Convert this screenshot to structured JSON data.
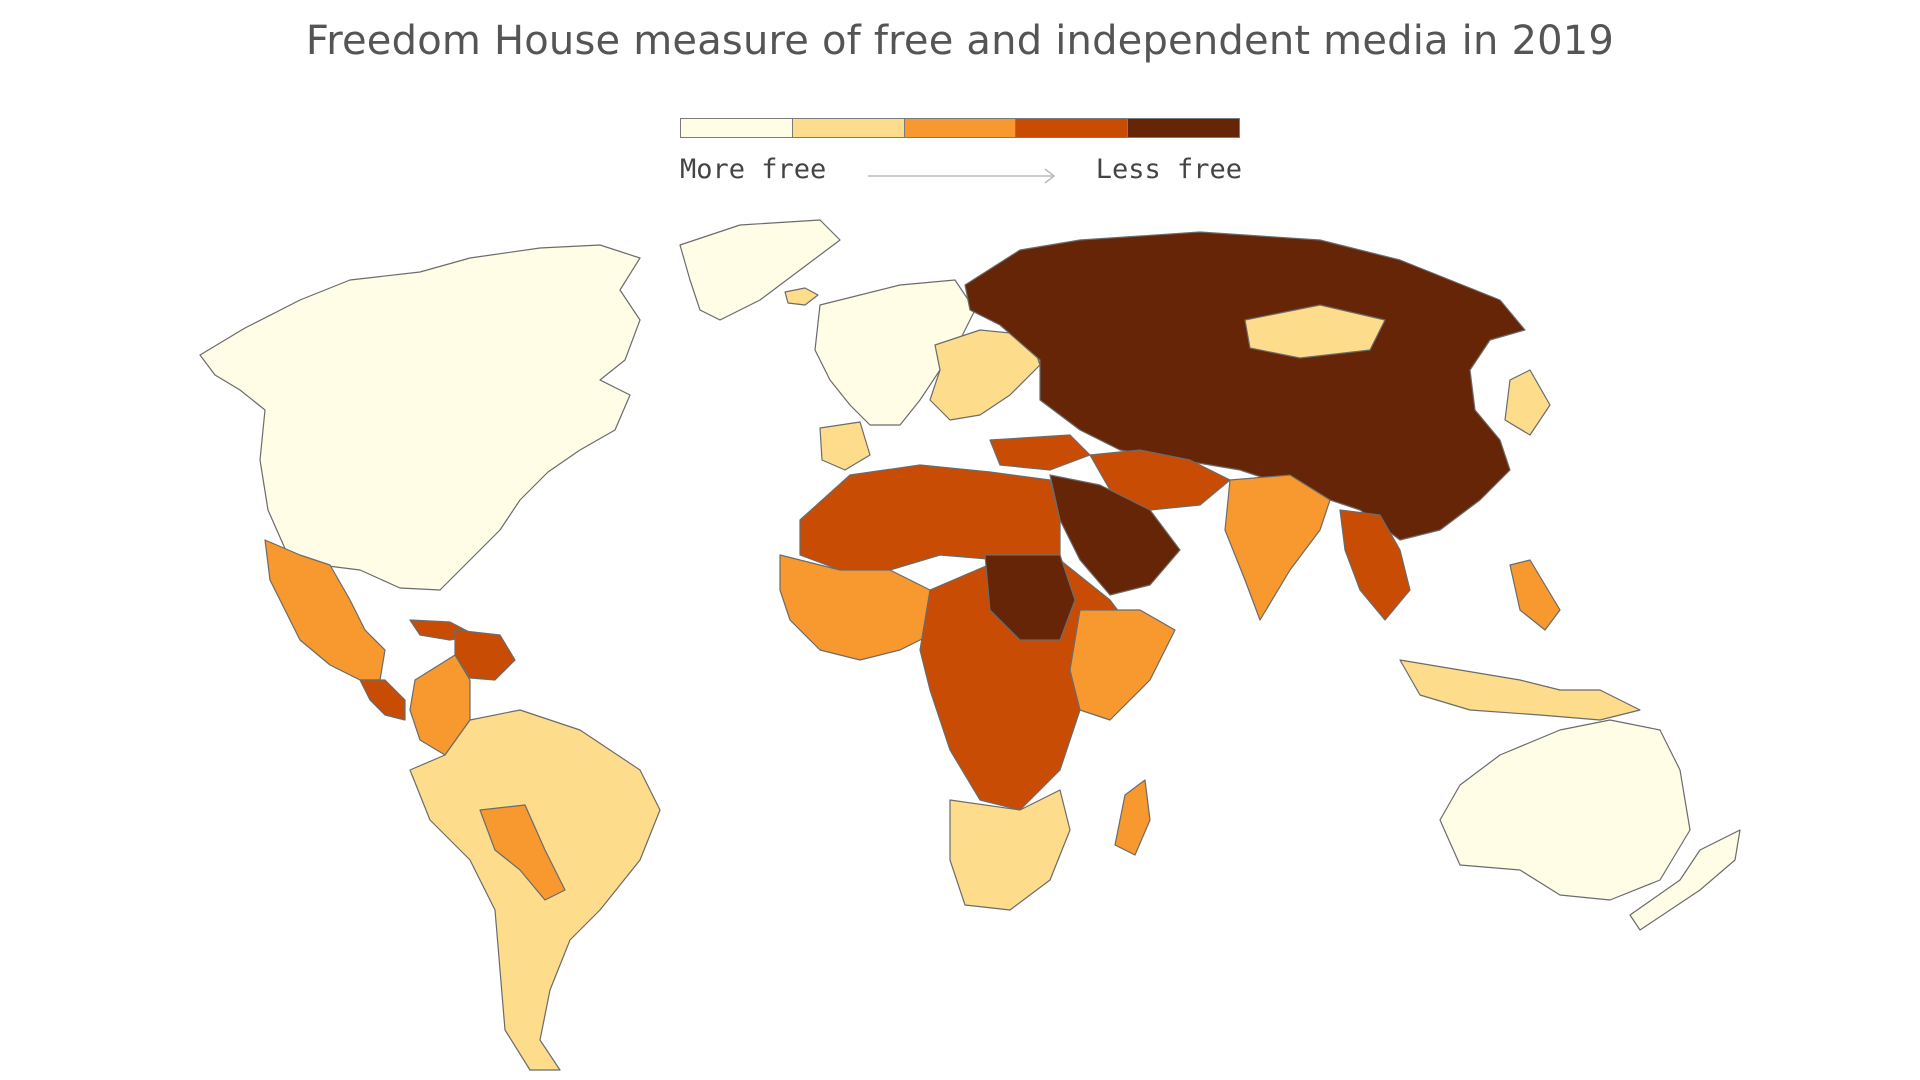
{
  "title": "Freedom House measure of free and independent media in 2019",
  "legend": {
    "low_label": "More free",
    "high_label": "Less free",
    "colors": [
      "#fffde6",
      "#fddc8c",
      "#f7992f",
      "#c94c04",
      "#662506"
    ]
  },
  "map": {
    "projection": "world-robinson",
    "scale": "ordinal-5-class"
  }
}
